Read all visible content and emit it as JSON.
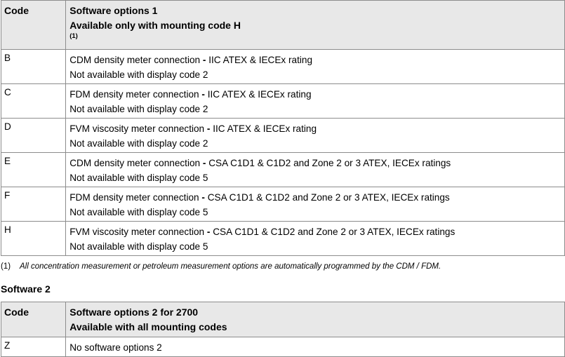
{
  "table1": {
    "header_code": "Code",
    "header_title": "Software options 1",
    "header_subtitle": "Available only with mounting code H",
    "header_footnote_ref": "(1)",
    "rows": [
      {
        "code": "B",
        "desc_a": "CDM density meter connection",
        "sep": " - ",
        "desc_b": "IIC ATEX & IECEx rating",
        "note": "Not available with display code 2"
      },
      {
        "code": "C",
        "desc_a": "FDM density meter connection",
        "sep": " - ",
        "desc_b": "IIC ATEX & IECEx rating",
        "note": "Not available with display code 2"
      },
      {
        "code": "D",
        "desc_a": "FVM viscosity meter connection",
        "sep": " - ",
        "desc_b": "IIC ATEX & IECEx rating",
        "note": "Not available with display code 2"
      },
      {
        "code": "E",
        "desc_a": "CDM density meter connection",
        "sep": " - ",
        "desc_b": "CSA C1D1 & C1D2 and Zone 2 or 3 ATEX, IECEx ratings",
        "note": "Not available with display code 5"
      },
      {
        "code": "F",
        "desc_a": "FDM density meter connection",
        "sep": " - ",
        "desc_b": "CSA C1D1 & C1D2 and Zone 2 or 3 ATEX, IECEx ratings",
        "note": "Not available with display code 5"
      },
      {
        "code": "H",
        "desc_a": "FVM viscosity meter connection",
        "sep": " - ",
        "desc_b": "CSA C1D1 & C1D2 and Zone 2 or 3 ATEX, IECEx ratings",
        "note": "Not available with display code 5"
      }
    ]
  },
  "footnote": {
    "number": "(1)",
    "text": "All concentration measurement or petroleum measurement options are automatically programmed by the CDM / FDM."
  },
  "section2": {
    "heading": "Software 2"
  },
  "table2": {
    "header_code": "Code",
    "header_title": "Software options 2 for 2700",
    "header_subtitle": "Available with all mounting codes",
    "rows": [
      {
        "code": "Z",
        "desc": "No software options 2"
      }
    ]
  }
}
